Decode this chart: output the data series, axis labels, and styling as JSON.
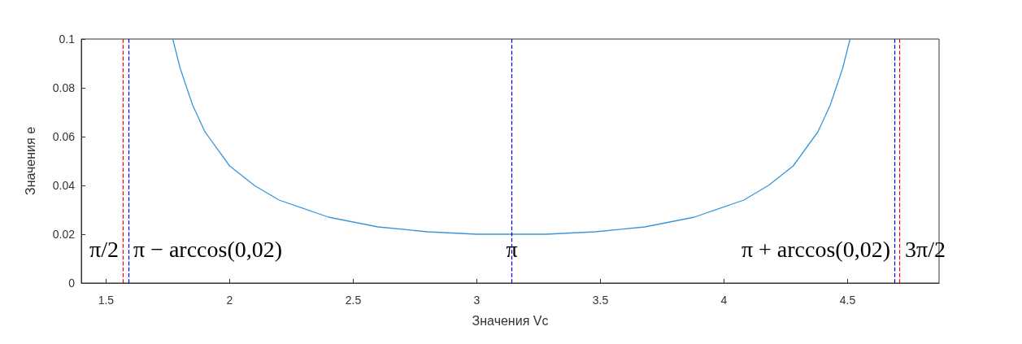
{
  "chart_data": {
    "type": "line",
    "xlabel": "Значения Vc",
    "ylabel": "Значения e",
    "x": [
      1.77,
      1.8,
      1.85,
      1.9,
      2.0,
      2.1,
      2.2,
      2.4,
      2.6,
      2.8,
      3.0,
      3.14,
      3.28,
      3.48,
      3.68,
      3.88,
      4.08,
      4.18,
      4.28,
      4.38,
      4.43,
      4.48,
      4.51
    ],
    "series": [
      {
        "color": "#3a96d8",
        "values": [
          0.1,
          0.088,
          0.073,
          0.062,
          0.048,
          0.04,
          0.034,
          0.027,
          0.023,
          0.021,
          0.02,
          0.02,
          0.02,
          0.021,
          0.023,
          0.027,
          0.034,
          0.04,
          0.048,
          0.062,
          0.073,
          0.088,
          0.1
        ]
      }
    ],
    "xlim": [
      1.4,
      4.87
    ],
    "xticks": [
      1.5,
      2,
      2.5,
      3,
      3.5,
      4,
      4.5
    ],
    "ylim": [
      0,
      0.1
    ],
    "yticks": [
      0,
      0.02,
      0.04,
      0.06,
      0.08,
      0.1
    ],
    "grid": false,
    "marker": "none",
    "line_style": "solid",
    "ref_lines": [
      {
        "axis": "x",
        "value": 1.5708,
        "color": "#ff0000",
        "line_style": "dashed",
        "label": "π/2"
      },
      {
        "axis": "x",
        "value": 1.5908,
        "color": "#0000ff",
        "line_style": "dashed",
        "label": "π − arccos(0,02)"
      },
      {
        "axis": "x",
        "value": 3.1416,
        "color": "#0000ff",
        "line_style": "dashed",
        "label": "π"
      },
      {
        "axis": "x",
        "value": 4.6924,
        "color": "#0000ff",
        "line_style": "dashed",
        "label": "π + arccos(0,02)"
      },
      {
        "axis": "x",
        "value": 4.7124,
        "color": "#ff0000",
        "line_style": "dashed",
        "label": "3π/2"
      }
    ]
  }
}
